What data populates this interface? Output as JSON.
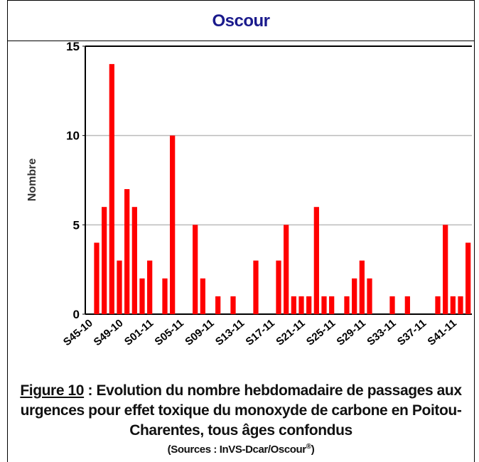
{
  "header": {
    "title": "Oscour"
  },
  "chart_data": {
    "type": "bar",
    "ylabel": "Nombre",
    "color": "#ff0000",
    "categories": [
      "S45-10",
      null,
      null,
      null,
      "S49-10",
      null,
      null,
      null,
      "S01-11",
      null,
      null,
      null,
      "S05-11",
      null,
      null,
      null,
      "S09-11",
      null,
      null,
      null,
      "S13-11",
      null,
      null,
      null,
      "S17-11",
      null,
      null,
      null,
      "S21-11",
      null,
      null,
      null,
      "S25-11",
      null,
      null,
      null,
      "S29-11",
      null,
      null,
      null,
      "S33-11",
      null,
      null,
      null,
      "S37-11",
      null,
      null,
      null,
      "S41-11",
      null,
      null
    ],
    "values": [
      0,
      4,
      6,
      14,
      3,
      7,
      6,
      2,
      3,
      0,
      2,
      10,
      0,
      0,
      5,
      2,
      0,
      1,
      0,
      1,
      0,
      0,
      3,
      0,
      0,
      3,
      5,
      1,
      1,
      1,
      6,
      1,
      1,
      0,
      1,
      2,
      3,
      2,
      0,
      0,
      1,
      0,
      1,
      0,
      0,
      0,
      1,
      5,
      1,
      1,
      4
    ],
    "ylim": [
      0,
      15
    ],
    "yticks": [
      0,
      5,
      10,
      15
    ],
    "grid": true
  },
  "caption": {
    "figure": "Figure 10",
    "text": " : Evolution du nombre hebdomadaire de passages aux urgences pour effet toxique du monoxyde de carbone en Poitou-Charentes, tous âges confondus",
    "sources": "(Sources : InVS-Dcar/Oscour",
    "sources_mark": "®",
    "sources_end": ")"
  }
}
